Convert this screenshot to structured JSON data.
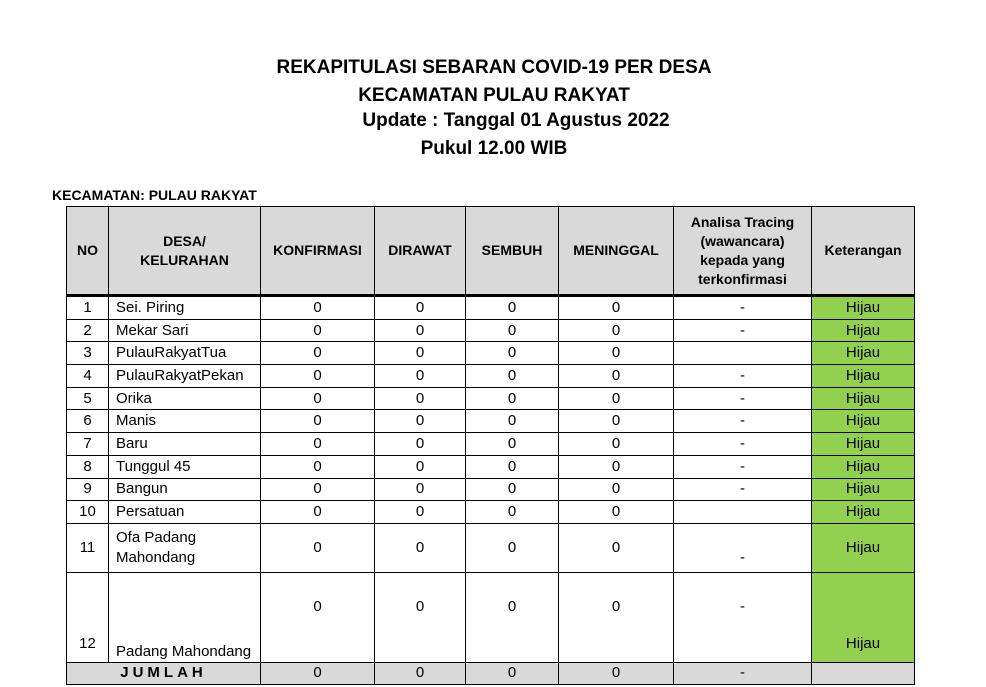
{
  "title": {
    "line1": "REKAPITULASI SEBARAN COVID-19 PER DESA",
    "line2": "KECAMATAN PULAU RAKYAT",
    "line3": "Update : Tanggal 01 Agustus 2022",
    "line4": "Pukul 12.00 WIB"
  },
  "subtitle": "KECAMATAN: PULAU RAKYAT",
  "headers": [
    "NO",
    "DESA/ KELURAHAN",
    "KONFIRMASI",
    "DIRAWAT",
    "SEMBUH",
    "MENINGGAL",
    "Analisa Tracing (wawancara) kepada yang terkonfirmasi",
    "Keterangan"
  ],
  "colors": {
    "header_bg": "#d9d9d9",
    "hijau": "#92d050"
  },
  "rows": [
    [
      "1",
      "Sei. Piring",
      "0",
      "0",
      "0",
      "0",
      "-",
      "Hijau"
    ],
    [
      "2",
      "Mekar Sari",
      "0",
      "0",
      "0",
      "0",
      "-",
      "Hijau"
    ],
    [
      "3",
      "PulauRakyatTua",
      "0",
      "0",
      "0",
      "0",
      "",
      "Hijau"
    ],
    [
      "4",
      "PulauRakyatPekan",
      "0",
      "0",
      "0",
      "0",
      "-",
      "Hijau"
    ],
    [
      "5",
      "Orika",
      "0",
      "0",
      "0",
      "0",
      "-",
      "Hijau"
    ],
    [
      "6",
      "Manis",
      "0",
      "0",
      "0",
      "0",
      "-",
      "Hijau"
    ],
    [
      "7",
      "Baru",
      "0",
      "0",
      "0",
      "0",
      "-",
      "Hijau"
    ],
    [
      "8",
      "Tunggul 45",
      "0",
      "0",
      "0",
      "0",
      "-",
      "Hijau"
    ],
    [
      "9",
      "Bangun",
      "0",
      "0",
      "0",
      "0",
      "-",
      "Hijau"
    ],
    [
      "10",
      "Persatuan",
      "0",
      "0",
      "0",
      "0",
      "",
      "Hijau"
    ],
    [
      "11",
      "Ofa Padang Mahondang",
      "0",
      "0",
      "0",
      "0",
      "-",
      "Hijau"
    ],
    [
      "12",
      "Padang Mahondang",
      "0",
      "0",
      "0",
      "0",
      "-",
      "Hijau"
    ]
  ],
  "total": {
    "label": "JUMLAH",
    "values": [
      "0",
      "0",
      "0",
      "0",
      "-",
      ""
    ]
  }
}
